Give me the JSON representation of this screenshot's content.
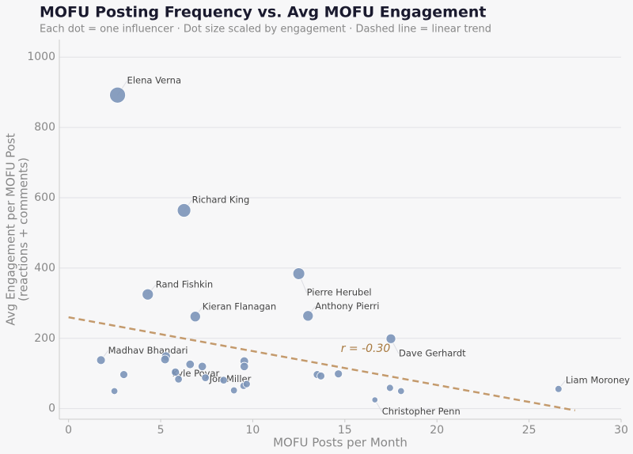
{
  "chart_data": {
    "type": "scatter",
    "title": "MOFU Posting Frequency vs. Avg MOFU Engagement",
    "subtitle": "Each dot = one influencer  ·  Dot size scaled by engagement  ·  Dashed line = linear trend",
    "xlabel": "MOFU Posts per Month",
    "ylabel": [
      "Avg Engagement per MOFU Post",
      "(reactions + comments)"
    ],
    "color": "#7b93b8",
    "x": [
      2.66,
      6.27,
      12.5,
      4.3,
      13.0,
      6.88,
      17.5,
      1.76,
      5.8,
      8.42,
      16.63,
      26.6,
      5.29,
      5.24,
      3.0,
      6.6,
      7.26,
      9.54,
      9.54,
      5.97,
      7.43,
      8.98,
      9.5,
      9.67,
      2.49,
      13.5,
      13.7,
      14.65,
      17.45,
      18.05
    ],
    "values": [
      892,
      564,
      384,
      325,
      264,
      262,
      199,
      138,
      104,
      81,
      25,
      56,
      149,
      140,
      97,
      126,
      120,
      135,
      120,
      84,
      88,
      52,
      65,
      70,
      50,
      97,
      93,
      99,
      59,
      50
    ],
    "labels": [
      "Elena Verna",
      "Richard King",
      "Pierre Herubel",
      "Rand Fishkin",
      "Anthony Pierri",
      "Kieran Flanagan",
      "Dave Gerhardt",
      "Madhav Bhandari",
      "Kyle Poyar",
      "Jon Miller",
      "Christopher Penn",
      "Liam Moroney",
      null,
      null,
      null,
      null,
      null,
      null,
      null,
      null,
      null,
      null,
      null,
      null,
      null,
      null,
      null,
      null,
      null,
      null
    ],
    "trend": {
      "color": "#c49a6c",
      "x": [
        0,
        27.5
      ],
      "y": [
        260,
        -5
      ]
    },
    "annotation": "r = -0.30",
    "xlim": [
      -0.5,
      30
    ],
    "ylim": [
      -30,
      1050
    ],
    "xticks": [
      0,
      5,
      10,
      15,
      20,
      25,
      30
    ],
    "yticks": [
      0,
      200,
      400,
      600,
      800,
      1000
    ],
    "grid": true
  }
}
